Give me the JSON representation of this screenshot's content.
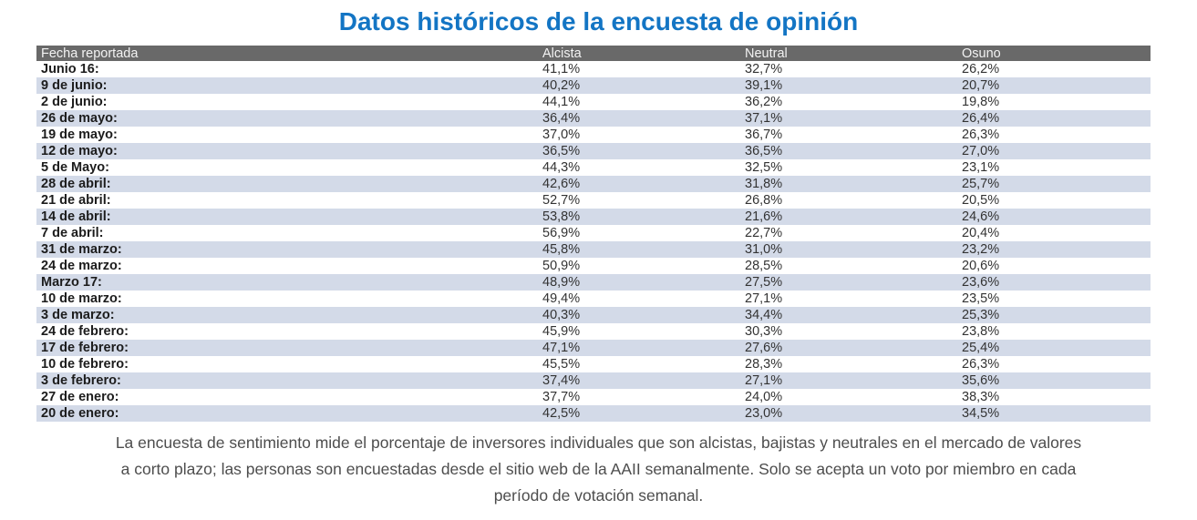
{
  "title": "Datos históricos de la encuesta de opinión",
  "colors": {
    "title_accent": "#1375c4",
    "header_bg": "#696969",
    "header_text": "#f3f3f3",
    "row_stripe": "#d3dae8"
  },
  "table": {
    "headers": [
      "Fecha reportada",
      "Alcista",
      "Neutral",
      "Osuno"
    ],
    "rows": [
      {
        "date": "Junio 16:",
        "alcista": "41,1%",
        "neutral": "32,7%",
        "osuno": "26,2%"
      },
      {
        "date": "9 de junio:",
        "alcista": "40,2%",
        "neutral": "39,1%",
        "osuno": "20,7%"
      },
      {
        "date": "2 de junio:",
        "alcista": "44,1%",
        "neutral": "36,2%",
        "osuno": "19,8%"
      },
      {
        "date": "26 de mayo:",
        "alcista": "36,4%",
        "neutral": "37,1%",
        "osuno": "26,4%"
      },
      {
        "date": "19 de mayo:",
        "alcista": "37,0%",
        "neutral": "36,7%",
        "osuno": "26,3%"
      },
      {
        "date": "12 de mayo:",
        "alcista": "36,5%",
        "neutral": "36,5%",
        "osuno": "27,0%"
      },
      {
        "date": "5 de Mayo:",
        "alcista": "44,3%",
        "neutral": "32,5%",
        "osuno": "23,1%"
      },
      {
        "date": "28 de abril:",
        "alcista": "42,6%",
        "neutral": "31,8%",
        "osuno": "25,7%"
      },
      {
        "date": "21 de abril:",
        "alcista": "52,7%",
        "neutral": "26,8%",
        "osuno": "20,5%"
      },
      {
        "date": "14 de abril:",
        "alcista": "53,8%",
        "neutral": "21,6%",
        "osuno": "24,6%"
      },
      {
        "date": "7 de abril:",
        "alcista": "56,9%",
        "neutral": "22,7%",
        "osuno": "20,4%"
      },
      {
        "date": "31 de marzo:",
        "alcista": "45,8%",
        "neutral": "31,0%",
        "osuno": "23,2%"
      },
      {
        "date": "24 de marzo:",
        "alcista": "50,9%",
        "neutral": "28,5%",
        "osuno": "20,6%"
      },
      {
        "date": "Marzo 17:",
        "alcista": "48,9%",
        "neutral": "27,5%",
        "osuno": "23,6%"
      },
      {
        "date": "10 de marzo:",
        "alcista": "49,4%",
        "neutral": "27,1%",
        "osuno": "23,5%"
      },
      {
        "date": "3 de marzo:",
        "alcista": "40,3%",
        "neutral": "34,4%",
        "osuno": "25,3%"
      },
      {
        "date": "24 de febrero:",
        "alcista": "45,9%",
        "neutral": "30,3%",
        "osuno": "23,8%"
      },
      {
        "date": "17 de febrero:",
        "alcista": "47,1%",
        "neutral": "27,6%",
        "osuno": "25,4%"
      },
      {
        "date": "10 de febrero:",
        "alcista": "45,5%",
        "neutral": "28,3%",
        "osuno": "26,3%"
      },
      {
        "date": "3 de febrero:",
        "alcista": "37,4%",
        "neutral": "27,1%",
        "osuno": "35,6%"
      },
      {
        "date": "27 de enero:",
        "alcista": "37,7%",
        "neutral": "24,0%",
        "osuno": "38,3%"
      },
      {
        "date": "20 de enero:",
        "alcista": "42,5%",
        "neutral": "23,0%",
        "osuno": "34,5%"
      }
    ]
  },
  "footer": {
    "text": "La encuesta de sentimiento mide el porcentaje de inversores individuales que son alcistas, bajistas y neutrales en el mercado de valores a corto plazo; las personas son encuestadas desde el sitio web de la AAII semanalmente. Solo se acepta un voto por miembro en cada período de votación semanal."
  },
  "chart_data": {
    "type": "table",
    "title": "Datos históricos de la encuesta de opinión",
    "categories": [
      "Junio 16",
      "9 de junio",
      "2 de junio",
      "26 de mayo",
      "19 de mayo",
      "12 de mayo",
      "5 de Mayo",
      "28 de abril",
      "21 de abril",
      "14 de abril",
      "7 de abril",
      "31 de marzo",
      "24 de marzo",
      "Marzo 17",
      "10 de marzo",
      "3 de marzo",
      "24 de febrero",
      "17 de febrero",
      "10 de febrero",
      "3 de febrero",
      "27 de enero",
      "20 de enero"
    ],
    "series": [
      {
        "name": "Alcista",
        "values": [
          41.1,
          40.2,
          44.1,
          36.4,
          37.0,
          36.5,
          44.3,
          42.6,
          52.7,
          53.8,
          56.9,
          45.8,
          50.9,
          48.9,
          49.4,
          40.3,
          45.9,
          47.1,
          45.5,
          37.4,
          37.7,
          42.5
        ]
      },
      {
        "name": "Neutral",
        "values": [
          32.7,
          39.1,
          36.2,
          37.1,
          36.7,
          36.5,
          32.5,
          31.8,
          26.8,
          21.6,
          22.7,
          31.0,
          28.5,
          27.5,
          27.1,
          34.4,
          30.3,
          27.6,
          28.3,
          27.1,
          24.0,
          23.0
        ]
      },
      {
        "name": "Osuno",
        "values": [
          26.2,
          20.7,
          19.8,
          26.4,
          26.3,
          27.0,
          23.1,
          25.7,
          20.5,
          24.6,
          20.4,
          23.2,
          20.6,
          23.6,
          23.5,
          25.3,
          23.8,
          25.4,
          26.3,
          35.6,
          38.3,
          34.5
        ]
      }
    ],
    "unit": "%"
  }
}
